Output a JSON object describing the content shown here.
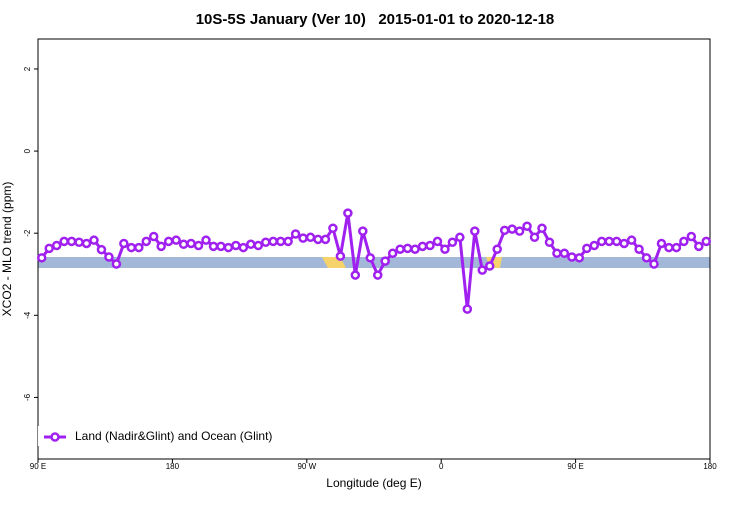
{
  "chart_data": {
    "type": "line",
    "title": "10S-5S January (Ver 10)   2015-01-01 to 2020-12-18",
    "xlabel": "Longitude (deg E)",
    "ylabel": "XCO2 - MLO trend (ppm)",
    "xlim": [
      90,
      540
    ],
    "xticks": [
      {
        "value": 90,
        "label": "90 E"
      },
      180,
      {
        "value": 270,
        "label": "90 W"
      },
      {
        "value": 360,
        "label": "0"
      },
      {
        "value": 450,
        "label": "90 E"
      },
      {
        "value": 540,
        "label": "180"
      }
    ],
    "ylim": [
      -7.5,
      2.73
    ],
    "yticks": [
      2,
      0,
      -2,
      -4,
      -6
    ],
    "legend": "bottom-left",
    "x": [
      92.5,
      97.5,
      102.5,
      107.5,
      112.5,
      117.5,
      122.5,
      127.5,
      132.5,
      137.5,
      142.5,
      147.5,
      152.5,
      157.5,
      162.5,
      167.5,
      172.5,
      177.5,
      182.5,
      187.5,
      192.5,
      197.5,
      202.5,
      207.5,
      212.5,
      217.5,
      222.5,
      227.5,
      232.5,
      237.5,
      242.5,
      247.5,
      252.5,
      257.5,
      262.5,
      267.5,
      272.5,
      277.5,
      282.5,
      287.5,
      292.5,
      297.5,
      302.5,
      307.5,
      312.5,
      317.5,
      322.5,
      327.5,
      332.5,
      337.5,
      342.5,
      347.5,
      352.5,
      357.5,
      362.5,
      367.5,
      372.5,
      377.5,
      382.5,
      387.5,
      392.5,
      397.5,
      402.5,
      407.5,
      412.5,
      417.5,
      422.5,
      427.5,
      432.5,
      437.5,
      442.5,
      447.5,
      452.5,
      457.5,
      462.5,
      467.5,
      472.5,
      477.5,
      482.5,
      487.5,
      492.5,
      497.5,
      502.5,
      507.5,
      512.5,
      517.5,
      522.5,
      527.5,
      532.5,
      537.5
    ],
    "series": [
      {
        "name": "Land (Nadir&Glint) and Ocean (Glint)",
        "color": "#a020f0",
        "values": [
          -2.6,
          -2.37,
          -2.3,
          -2.2,
          -2.2,
          -2.22,
          -2.25,
          -2.17,
          -2.4,
          -2.58,
          -2.75,
          -2.25,
          -2.35,
          -2.35,
          -2.2,
          -2.08,
          -2.32,
          -2.2,
          -2.17,
          -2.27,
          -2.25,
          -2.3,
          -2.17,
          -2.32,
          -2.32,
          -2.35,
          -2.3,
          -2.35,
          -2.27,
          -2.3,
          -2.22,
          -2.2,
          -2.2,
          -2.2,
          -2.02,
          -2.12,
          -2.1,
          -2.15,
          -2.15,
          -1.88,
          -2.56,
          -1.51,
          -3.02,
          -1.95,
          -2.6,
          -3.02,
          -2.68,
          -2.49,
          -2.39,
          -2.37,
          -2.39,
          -2.32,
          -2.3,
          -2.2,
          -2.39,
          -2.22,
          -2.1,
          -3.85,
          -1.95,
          -2.9,
          -2.8,
          -2.39,
          -1.93,
          -1.9,
          -1.95,
          -1.83,
          -2.1,
          -1.88,
          -2.22,
          -2.49,
          -2.49,
          -2.58,
          -2.6,
          -2.37,
          -2.3,
          -2.2,
          -2.2,
          -2.2,
          -2.25,
          -2.17,
          -2.39,
          -2.6,
          -2.75,
          -2.25,
          -2.35,
          -2.35,
          -2.2,
          -2.08,
          -2.32,
          -2.2
        ]
      }
    ]
  }
}
